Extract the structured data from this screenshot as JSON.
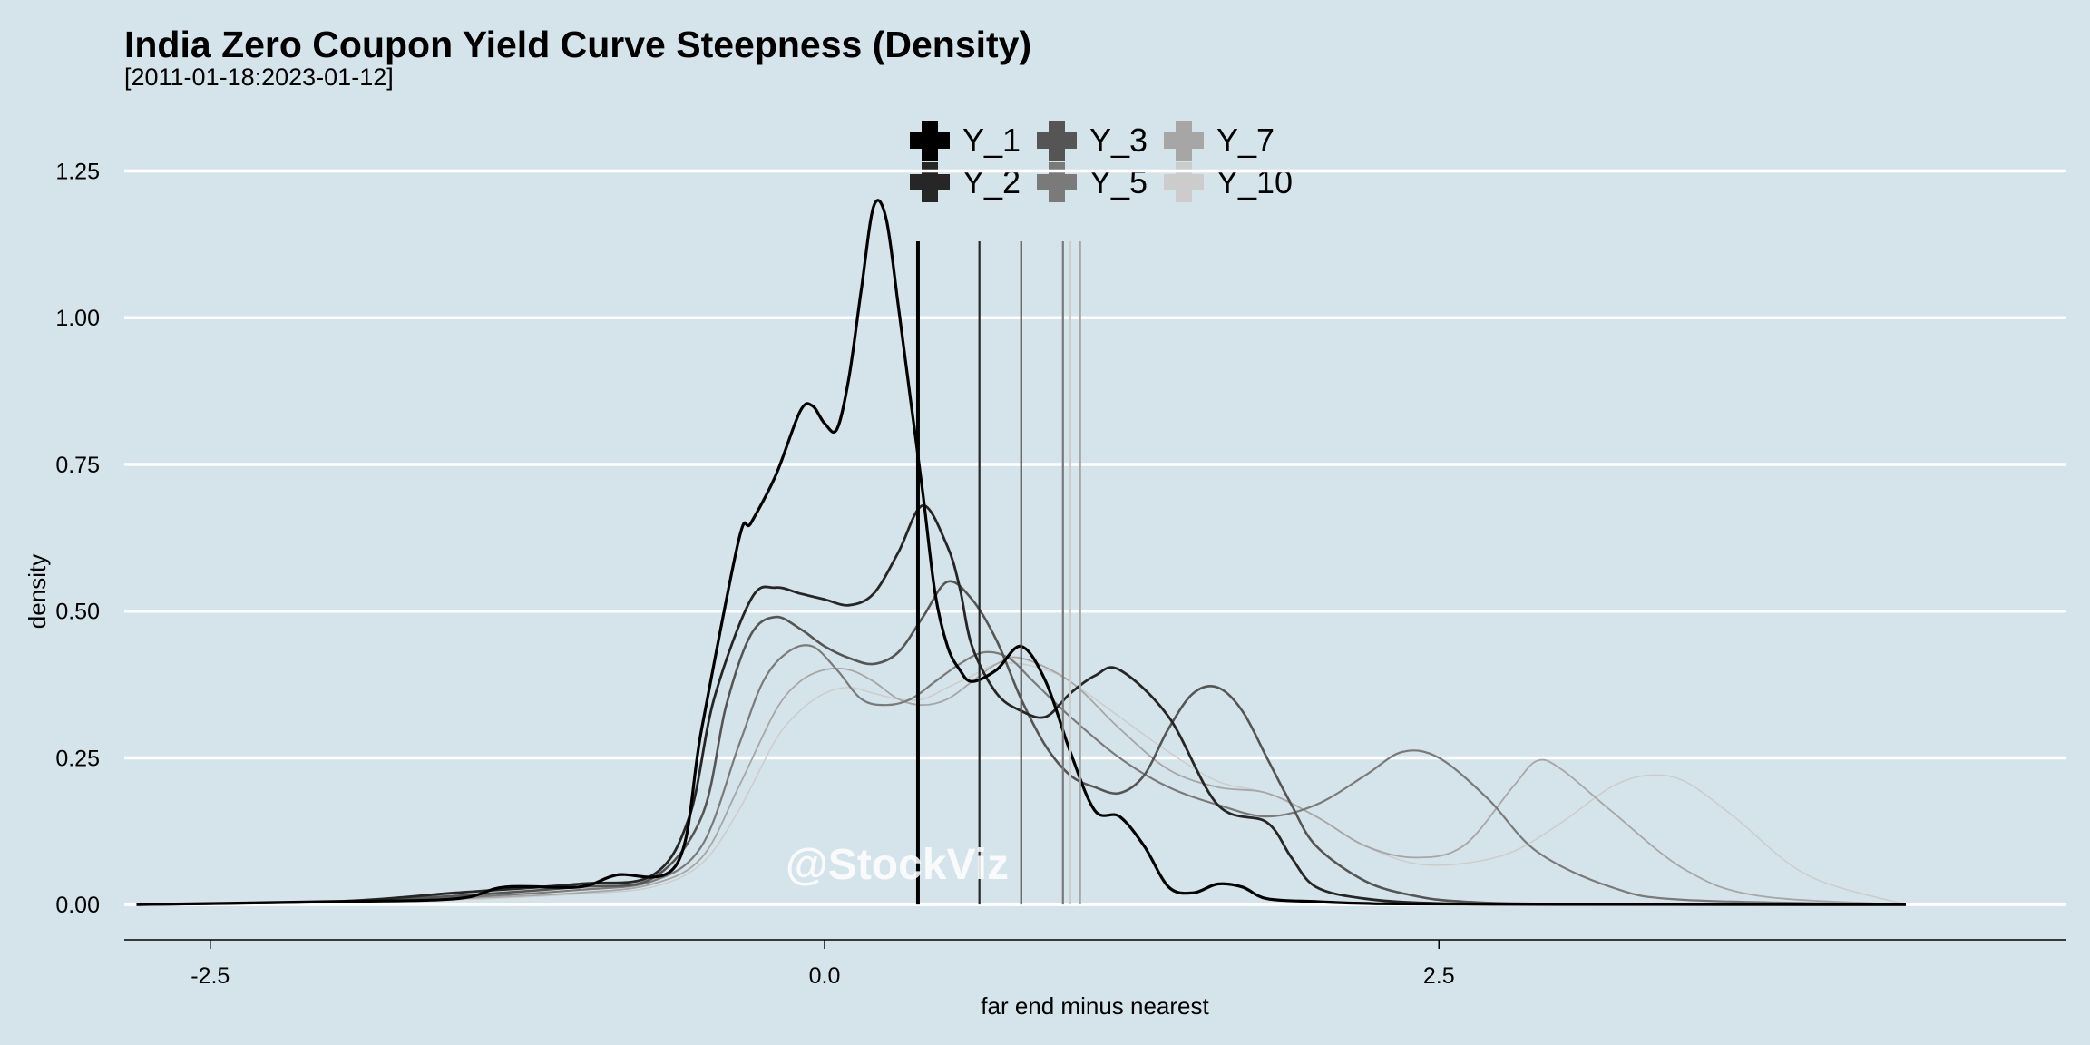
{
  "chart_data": {
    "type": "line",
    "title": "India Zero Coupon Yield Curve Steepness (Density)",
    "subtitle": "[2011-01-18:2023-01-12]",
    "xlabel": "far end minus nearest",
    "ylabel": "density",
    "xlim": [
      -2.85,
      5.05
    ],
    "ylim": [
      -0.06,
      1.26
    ],
    "x_ticks": [
      -2.5,
      0.0,
      2.5
    ],
    "x_tick_labels": [
      "-2.5",
      "0.0",
      "2.5"
    ],
    "y_ticks": [
      0.0,
      0.25,
      0.5,
      0.75,
      1.0,
      1.25
    ],
    "y_tick_labels": [
      "0.00",
      "0.25",
      "0.50",
      "0.75",
      "1.00",
      "1.25"
    ],
    "grid": "horizontal",
    "legend_position": "top",
    "watermark": "@StockViz",
    "series": [
      {
        "name": "Y_1",
        "color": "#000000",
        "mean": 0.38,
        "x": [
          -2.8,
          -2.0,
          -1.5,
          -1.3,
          -1.0,
          -0.85,
          -0.6,
          -0.5,
          -0.35,
          -0.3,
          -0.2,
          -0.1,
          -0.05,
          0.0,
          0.05,
          0.1,
          0.15,
          0.2,
          0.25,
          0.3,
          0.35,
          0.4,
          0.45,
          0.5,
          0.55,
          0.6,
          0.7,
          0.8,
          0.9,
          1.0,
          1.1,
          1.2,
          1.3,
          1.4,
          1.5,
          1.6,
          1.7,
          1.8,
          2.0,
          2.2,
          2.5,
          4.4
        ],
        "y": [
          0.0,
          0.005,
          0.01,
          0.03,
          0.03,
          0.05,
          0.07,
          0.3,
          0.62,
          0.65,
          0.73,
          0.84,
          0.85,
          0.82,
          0.81,
          0.9,
          1.05,
          1.19,
          1.17,
          1.02,
          0.86,
          0.7,
          0.53,
          0.44,
          0.4,
          0.38,
          0.4,
          0.44,
          0.38,
          0.26,
          0.16,
          0.15,
          0.1,
          0.03,
          0.02,
          0.035,
          0.03,
          0.01,
          0.005,
          0.002,
          0.001,
          0.0
        ]
      },
      {
        "name": "Y_2",
        "color": "#262626",
        "mean": 0.63,
        "x": [
          -2.8,
          -2.0,
          -1.5,
          -1.0,
          -0.7,
          -0.55,
          -0.45,
          -0.3,
          -0.2,
          -0.1,
          0.0,
          0.1,
          0.2,
          0.3,
          0.4,
          0.5,
          0.55,
          0.6,
          0.7,
          0.8,
          0.9,
          1.0,
          1.1,
          1.2,
          1.4,
          1.6,
          1.8,
          1.9,
          2.0,
          2.2,
          2.5,
          3.0,
          4.4
        ],
        "y": [
          0.0,
          0.005,
          0.02,
          0.035,
          0.05,
          0.15,
          0.35,
          0.52,
          0.54,
          0.53,
          0.52,
          0.51,
          0.53,
          0.6,
          0.68,
          0.61,
          0.54,
          0.44,
          0.36,
          0.33,
          0.32,
          0.36,
          0.39,
          0.4,
          0.32,
          0.17,
          0.14,
          0.08,
          0.03,
          0.01,
          0.002,
          0.0,
          0.0
        ]
      },
      {
        "name": "Y_3",
        "color": "#555555",
        "mean": 0.8,
        "x": [
          -2.8,
          -2.0,
          -1.5,
          -1.0,
          -0.7,
          -0.5,
          -0.4,
          -0.3,
          -0.2,
          -0.1,
          0.0,
          0.1,
          0.2,
          0.3,
          0.4,
          0.5,
          0.6,
          0.7,
          0.8,
          0.9,
          1.0,
          1.1,
          1.2,
          1.3,
          1.4,
          1.5,
          1.6,
          1.7,
          1.8,
          1.9,
          2.0,
          2.2,
          2.4,
          2.6,
          3.0,
          4.4
        ],
        "y": [
          0.0,
          0.005,
          0.015,
          0.03,
          0.045,
          0.15,
          0.34,
          0.46,
          0.49,
          0.47,
          0.44,
          0.42,
          0.41,
          0.43,
          0.49,
          0.55,
          0.52,
          0.45,
          0.35,
          0.27,
          0.22,
          0.2,
          0.19,
          0.22,
          0.3,
          0.36,
          0.37,
          0.33,
          0.25,
          0.17,
          0.1,
          0.04,
          0.015,
          0.005,
          0.001,
          0.0
        ]
      },
      {
        "name": "Y_5",
        "color": "#7a7a7a",
        "mean": 0.97,
        "x": [
          -2.8,
          -2.0,
          -1.5,
          -1.0,
          -0.7,
          -0.5,
          -0.35,
          -0.25,
          -0.15,
          -0.05,
          0.05,
          0.15,
          0.25,
          0.35,
          0.45,
          0.55,
          0.65,
          0.75,
          0.85,
          1.0,
          1.2,
          1.4,
          1.6,
          1.8,
          2.0,
          2.2,
          2.35,
          2.5,
          2.7,
          2.9,
          3.2,
          3.5,
          4.4
        ],
        "y": [
          0.0,
          0.005,
          0.012,
          0.025,
          0.04,
          0.1,
          0.27,
          0.38,
          0.43,
          0.44,
          0.4,
          0.35,
          0.34,
          0.35,
          0.38,
          0.41,
          0.43,
          0.42,
          0.38,
          0.32,
          0.25,
          0.2,
          0.17,
          0.15,
          0.17,
          0.22,
          0.26,
          0.25,
          0.18,
          0.09,
          0.03,
          0.008,
          0.0
        ]
      },
      {
        "name": "Y_7",
        "color": "#a6a6a6",
        "mean": 1.04,
        "x": [
          -2.8,
          -2.0,
          -1.5,
          -1.0,
          -0.7,
          -0.5,
          -0.35,
          -0.2,
          -0.1,
          0.0,
          0.1,
          0.2,
          0.3,
          0.4,
          0.5,
          0.6,
          0.7,
          0.8,
          1.0,
          1.2,
          1.4,
          1.6,
          1.8,
          2.0,
          2.2,
          2.4,
          2.6,
          2.8,
          2.9,
          3.0,
          3.2,
          3.5,
          3.8,
          4.4
        ],
        "y": [
          0.0,
          0.004,
          0.01,
          0.02,
          0.035,
          0.08,
          0.2,
          0.33,
          0.38,
          0.4,
          0.4,
          0.38,
          0.35,
          0.34,
          0.35,
          0.38,
          0.41,
          0.42,
          0.38,
          0.3,
          0.23,
          0.2,
          0.19,
          0.15,
          0.1,
          0.08,
          0.1,
          0.2,
          0.245,
          0.23,
          0.16,
          0.06,
          0.015,
          0.0
        ]
      },
      {
        "name": "Y_10",
        "color": "#cccccc",
        "mean": 1.0,
        "x": [
          -2.8,
          -2.0,
          -1.5,
          -1.0,
          -0.7,
          -0.5,
          -0.35,
          -0.2,
          -0.1,
          0.0,
          0.1,
          0.2,
          0.3,
          0.4,
          0.5,
          0.6,
          0.7,
          0.8,
          0.9,
          1.0,
          1.2,
          1.4,
          1.6,
          1.8,
          2.0,
          2.2,
          2.4,
          2.6,
          2.8,
          3.0,
          3.2,
          3.35,
          3.5,
          3.7,
          4.0,
          4.4
        ],
        "y": [
          0.0,
          0.003,
          0.008,
          0.018,
          0.03,
          0.07,
          0.16,
          0.28,
          0.33,
          0.36,
          0.37,
          0.36,
          0.35,
          0.35,
          0.37,
          0.39,
          0.41,
          0.41,
          0.4,
          0.38,
          0.32,
          0.26,
          0.21,
          0.19,
          0.15,
          0.1,
          0.07,
          0.07,
          0.09,
          0.14,
          0.2,
          0.22,
          0.21,
          0.15,
          0.05,
          0.0
        ]
      }
    ]
  }
}
